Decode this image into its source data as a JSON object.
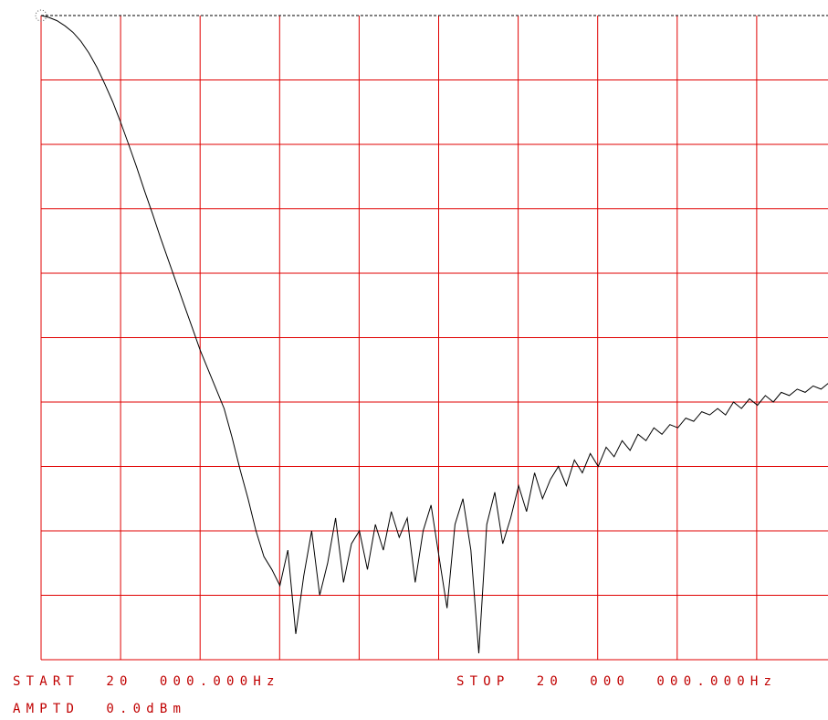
{
  "chart_data": {
    "type": "line",
    "title": "",
    "xlabel": "",
    "ylabel": "",
    "grid": true,
    "grid_color": "#e00000",
    "trace_color": "#000000",
    "x_divisions": 10,
    "y_divisions": 10,
    "xlim": [
      20000,
      20000000
    ],
    "ylim": [
      -100,
      0
    ],
    "start_label": "START  20  000.000Hz",
    "stop_label": "STOP  20  000  000.000Hz",
    "amptd_label": "AMPTD  0.0dBm",
    "series": [
      {
        "x": [
          20000,
          220000,
          420000,
          620000,
          820000,
          1020000,
          1220000,
          1420000,
          1620000,
          1820000,
          2020000,
          2220000,
          2420000,
          2620000,
          2820000,
          3020000,
          3220000,
          3420000,
          3620000,
          3820000,
          4020000,
          4220000,
          4420000,
          4620000,
          4820000,
          5020000,
          5220000,
          5420000,
          5620000,
          5820000,
          6020000,
          6220000,
          6420000,
          6620000,
          6820000,
          7020000,
          7220000,
          7420000,
          7620000,
          7820000,
          8020000,
          8220000,
          8420000,
          8620000,
          8820000,
          9020000,
          9220000,
          9420000,
          9620000,
          9820000,
          10020000,
          10220000,
          10420000,
          10620000,
          10820000,
          11020000,
          11220000,
          11420000,
          11620000,
          11820000,
          12020000,
          12220000,
          12420000,
          12620000,
          12820000,
          13020000,
          13220000,
          13420000,
          13620000,
          13820000,
          14020000,
          14220000,
          14420000,
          14620000,
          14820000,
          15020000,
          15220000,
          15420000,
          15620000,
          15820000,
          16020000,
          16220000,
          16420000,
          16620000,
          16820000,
          17020000,
          17220000,
          17420000,
          17620000,
          17820000,
          18020000,
          18220000,
          18420000,
          18620000,
          18820000,
          19020000,
          19220000,
          19420000,
          19620000,
          19820000,
          20000000
        ],
        "y": [
          0,
          -0.3,
          -0.8,
          -1.6,
          -2.6,
          -4.0,
          -5.8,
          -8.0,
          -10.6,
          -13.4,
          -16.6,
          -20.0,
          -23.5,
          -27.2,
          -30.8,
          -34.5,
          -38.0,
          -41.5,
          -45.0,
          -48.5,
          -52.0,
          -55.0,
          -58.0,
          -61.0,
          -65.5,
          -70.5,
          -75.0,
          -80.0,
          -84.0,
          -86.0,
          -88.5,
          -83.0,
          -96.0,
          -87.0,
          -80.0,
          -90.0,
          -85.0,
          -78.0,
          -88.0,
          -82.0,
          -80.0,
          -86.0,
          -79.0,
          -83.0,
          -77.0,
          -81.0,
          -78.0,
          -88.0,
          -80.0,
          -76.0,
          -84.0,
          -92.0,
          -79.0,
          -75.0,
          -83.0,
          -99.0,
          -79.0,
          -74.0,
          -82.0,
          -78.0,
          -73.0,
          -77.0,
          -71.0,
          -75.0,
          -72.0,
          -70.0,
          -73.0,
          -69.0,
          -71.0,
          -68.0,
          -70.0,
          -67.0,
          -68.5,
          -66.0,
          -67.5,
          -65.0,
          -66.0,
          -64.0,
          -65.0,
          -63.5,
          -64.0,
          -62.5,
          -63.0,
          -61.5,
          -62.0,
          -61.0,
          -62.0,
          -60.0,
          -61.0,
          -59.5,
          -60.5,
          -59.0,
          -60.0,
          -58.5,
          -59.0,
          -58.0,
          -58.5,
          -57.5,
          -58.0,
          -57.0,
          -62.5
        ]
      }
    ]
  }
}
